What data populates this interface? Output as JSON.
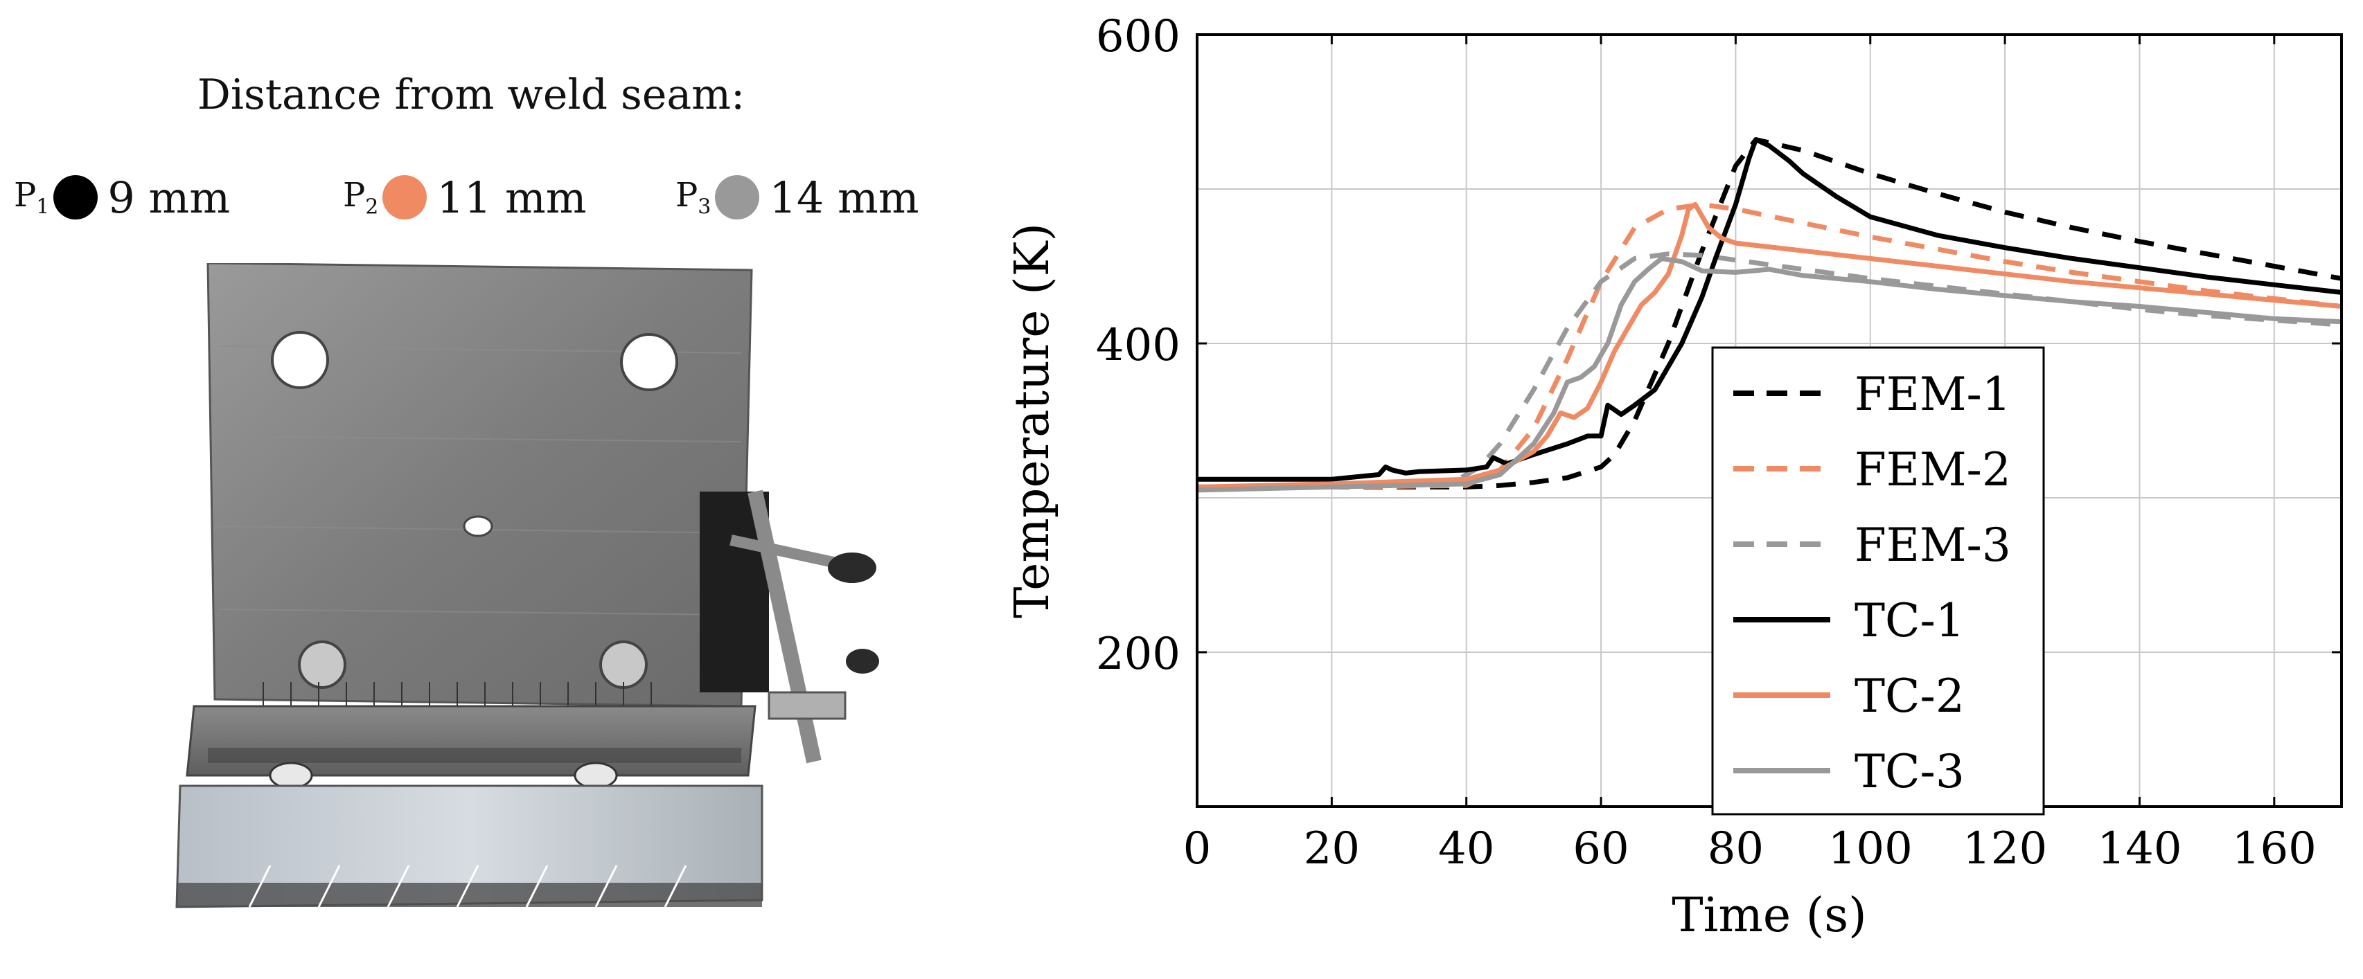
{
  "figure": {
    "legend_title": "Distance from weld seam:",
    "points": [
      {
        "label": "P",
        "sub": "1",
        "value": "9 mm",
        "color": "#000000"
      },
      {
        "label": "P",
        "sub": "2",
        "value": "11 mm",
        "color": "#ef8a62"
      },
      {
        "label": "P",
        "sub": "3",
        "value": "14 mm",
        "color": "#999999"
      }
    ]
  },
  "chart_data": {
    "type": "line",
    "title": "",
    "xlabel": "Time (s)",
    "ylabel": "Temperature (K)",
    "xlim": [
      0,
      170
    ],
    "ylim": [
      100,
      600
    ],
    "xticks": [
      0,
      20,
      40,
      60,
      80,
      100,
      120,
      140,
      160
    ],
    "yticks": [
      200,
      400,
      600
    ],
    "grid": true,
    "legend_position": "center-right",
    "series": [
      {
        "name": "FEM-1",
        "color": "#000000",
        "dash": true,
        "x": [
          0,
          40,
          45,
          50,
          55,
          60,
          62,
          65,
          70,
          75,
          80,
          83,
          90,
          100,
          110,
          120,
          130,
          140,
          150,
          160,
          170
        ],
        "y": [
          307,
          307,
          308,
          310,
          313,
          320,
          328,
          350,
          400,
          460,
          515,
          532,
          525,
          510,
          497,
          485,
          475,
          466,
          458,
          450,
          442
        ]
      },
      {
        "name": "FEM-2",
        "color": "#ef8a62",
        "dash": true,
        "x": [
          0,
          40,
          45,
          50,
          55,
          60,
          65,
          70,
          75,
          80,
          90,
          100,
          110,
          120,
          130,
          140,
          150,
          160,
          170
        ],
        "y": [
          306,
          308,
          318,
          345,
          390,
          440,
          475,
          487,
          490,
          487,
          478,
          469,
          461,
          453,
          446,
          440,
          434,
          429,
          424
        ]
      },
      {
        "name": "FEM-3",
        "color": "#999999",
        "dash": true,
        "x": [
          0,
          38,
          42,
          45,
          50,
          55,
          60,
          65,
          70,
          75,
          80,
          90,
          100,
          110,
          120,
          130,
          140,
          150,
          160,
          170
        ],
        "y": [
          306,
          310,
          320,
          335,
          370,
          410,
          440,
          455,
          458,
          457,
          454,
          448,
          442,
          437,
          432,
          427,
          422,
          418,
          415,
          412
        ]
      },
      {
        "name": "TC-1",
        "color": "#000000",
        "dash": false,
        "x": [
          0,
          20,
          27,
          28,
          29,
          31,
          33,
          40,
          43,
          44,
          46,
          50,
          55,
          58,
          60,
          61,
          62,
          63,
          65,
          68,
          70,
          72,
          75,
          77,
          80,
          82,
          83,
          85,
          88,
          90,
          95,
          100,
          110,
          120,
          130,
          140,
          150,
          160,
          170
        ],
        "y": [
          312,
          312,
          315,
          320,
          318,
          316,
          317,
          318,
          320,
          326,
          322,
          328,
          335,
          340,
          340,
          360,
          357,
          354,
          360,
          370,
          385,
          400,
          430,
          455,
          490,
          520,
          532,
          528,
          518,
          510,
          495,
          482,
          470,
          462,
          455,
          449,
          443,
          438,
          433
        ]
      },
      {
        "name": "TC-2",
        "color": "#ef8a62",
        "dash": false,
        "x": [
          0,
          20,
          40,
          45,
          50,
          52,
          54,
          56,
          58,
          60,
          62,
          64,
          66,
          68,
          70,
          72,
          73,
          74,
          76,
          78,
          80,
          90,
          100,
          110,
          120,
          130,
          140,
          150,
          160,
          170
        ],
        "y": [
          307,
          309,
          312,
          318,
          330,
          340,
          355,
          352,
          358,
          375,
          395,
          410,
          425,
          433,
          445,
          470,
          487,
          490,
          475,
          468,
          465,
          460,
          455,
          450,
          445,
          440,
          436,
          432,
          428,
          424
        ]
      },
      {
        "name": "TC-3",
        "color": "#999999",
        "dash": false,
        "x": [
          0,
          20,
          40,
          45,
          50,
          53,
          55,
          57,
          59,
          61,
          63,
          65,
          67,
          69,
          72,
          75,
          80,
          85,
          90,
          100,
          110,
          120,
          130,
          140,
          150,
          160,
          170
        ],
        "y": [
          305,
          307,
          309,
          315,
          335,
          355,
          375,
          378,
          385,
          400,
          425,
          440,
          448,
          455,
          453,
          447,
          446,
          448,
          444,
          440,
          435,
          431,
          427,
          424,
          420,
          416,
          414
        ]
      }
    ]
  }
}
